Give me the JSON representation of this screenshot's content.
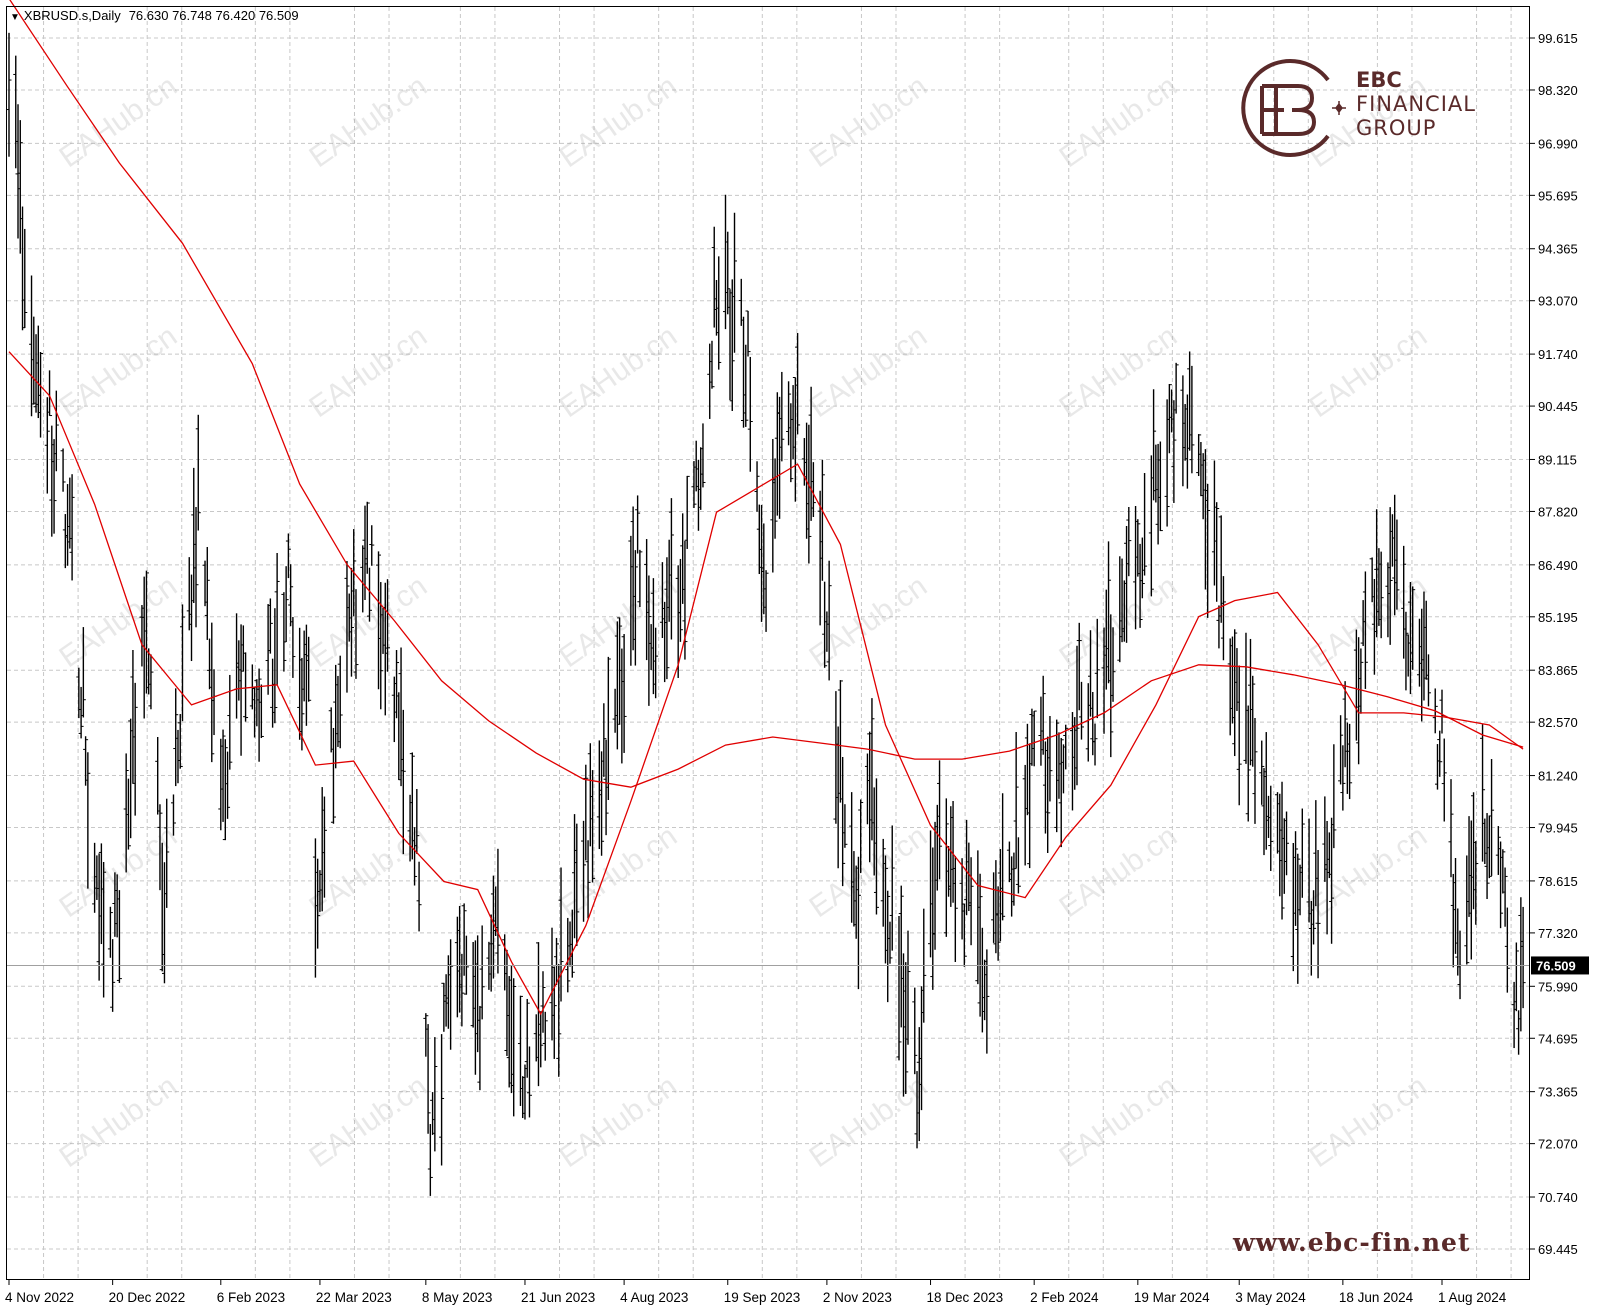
{
  "header": {
    "symbol": "XBRUSD.s,Daily",
    "ohlc": "76.630 76.748 76.420 76.509"
  },
  "brand": {
    "line1": "EBC",
    "line2": "FINANCIAL",
    "line3": "GROUP",
    "website": "www.ebc-fin.net"
  },
  "watermark_text": "EAHub.cn",
  "colors": {
    "bars": "#000000",
    "moving_averages": "#e00000",
    "grid": "#c8c8c8",
    "price_line": "#a0a0a0",
    "brand": "#5a2a2a"
  },
  "chart_data": {
    "type": "line",
    "symbol": "XBRUSD.s",
    "timeframe": "Daily",
    "ylim": [
      69.445,
      100.9
    ],
    "y_ticks": [
      "99.615",
      "98.320",
      "96.990",
      "95.695",
      "94.365",
      "93.070",
      "91.740",
      "90.445",
      "89.115",
      "87.820",
      "86.490",
      "85.195",
      "83.865",
      "82.570",
      "81.240",
      "79.945",
      "78.615",
      "77.320",
      "75.990",
      "74.695",
      "73.365",
      "72.070",
      "70.740",
      "69.445"
    ],
    "x_ticks": [
      "4 Nov 2022",
      "20 Dec 2022",
      "6 Feb 2023",
      "22 Mar 2023",
      "8 May 2023",
      "21 Jun 2023",
      "4 Aug 2023",
      "19 Sep 2023",
      "2 Nov 2023",
      "18 Dec 2023",
      "2 Feb 2024",
      "19 Mar 2024",
      "3 May 2024",
      "18 Jun 2024",
      "1 Aug 2024"
    ],
    "current_price": "76.509",
    "price_anchors": {
      "x": [
        "2022-11-04",
        "2022-11-07",
        "2022-11-10",
        "2022-11-22",
        "2022-12-01",
        "2022-12-07",
        "2022-12-12",
        "2022-12-21",
        "2022-12-28",
        "2023-01-04",
        "2023-01-12",
        "2023-01-27",
        "2023-02-06",
        "2023-02-13",
        "2023-02-23",
        "2023-03-07",
        "2023-03-17",
        "2023-03-20",
        "2023-04-03",
        "2023-04-12",
        "2023-04-20",
        "2023-05-04",
        "2023-05-10",
        "2023-05-22",
        "2023-05-31",
        "2023-06-07",
        "2023-06-12",
        "2023-06-23",
        "2023-07-04",
        "2023-07-13",
        "2023-07-20",
        "2023-08-03",
        "2023-08-10",
        "2023-08-17",
        "2023-08-31",
        "2023-09-08",
        "2023-09-14",
        "2023-09-27",
        "2023-10-06",
        "2023-10-13",
        "2023-10-19",
        "2023-10-30",
        "2023-11-06",
        "2023-11-16",
        "2023-11-22",
        "2023-12-05",
        "2023-12-12",
        "2023-12-22",
        "2024-01-02",
        "2024-01-12",
        "2024-01-23",
        "2024-02-05",
        "2024-02-13",
        "2024-02-22",
        "2024-03-01",
        "2024-03-11",
        "2024-03-19",
        "2024-03-27",
        "2024-04-05",
        "2024-04-12",
        "2024-04-22",
        "2024-05-02",
        "2024-05-07",
        "2024-05-20",
        "2024-06-04",
        "2024-06-12",
        "2024-06-20",
        "2024-06-28",
        "2024-07-08",
        "2024-07-17",
        "2024-07-25",
        "2024-08-02",
        "2024-08-09",
        "2024-08-13",
        "2024-08-20",
        "2024-08-26",
        "2024-09-03",
        "2024-09-06"
      ],
      "y": [
        98.0,
        98.5,
        94.5,
        90.0,
        87.0,
        83.0,
        78.0,
        77.0,
        81.0,
        85.5,
        78.0,
        88.0,
        80.0,
        84.5,
        82.5,
        86.0,
        83.0,
        78.5,
        84.5,
        87.0,
        84.5,
        79.0,
        72.0,
        77.0,
        75.0,
        77.0,
        76.5,
        73.5,
        75.5,
        78.0,
        80.0,
        83.0,
        86.5,
        84.0,
        86.5,
        90.0,
        93.5,
        92.0,
        86.0,
        89.5,
        90.5,
        87.5,
        82.0,
        78.5,
        80.5,
        76.0,
        74.0,
        79.5,
        78.0,
        76.5,
        79.5,
        82.0,
        81.5,
        83.0,
        83.0,
        85.5,
        86.5,
        89.0,
        90.5,
        89.5,
        86.5,
        83.0,
        82.5,
        79.5,
        78.0,
        79.0,
        82.0,
        85.0,
        86.5,
        85.0,
        84.0,
        81.5,
        76.5,
        78.0,
        80.0,
        79.0,
        75.5,
        76.5
      ]
    },
    "series": [
      {
        "x": [
          "2022-11-04",
          "2022-11-30",
          "2022-12-23",
          "2023-01-20",
          "2023-02-20",
          "2023-03-13",
          "2023-04-03",
          "2023-04-24",
          "2023-05-15",
          "2023-06-05",
          "2023-06-26",
          "2023-07-17",
          "2023-08-07",
          "2023-08-28",
          "2023-09-18",
          "2023-10-09",
          "2023-10-30",
          "2023-11-20",
          "2023-12-11",
          "2024-01-01",
          "2024-01-22",
          "2024-02-12",
          "2024-03-04",
          "2024-03-25",
          "2024-04-15",
          "2024-05-06",
          "2024-05-27",
          "2024-06-17",
          "2024-07-08",
          "2024-07-29",
          "2024-08-19",
          "2024-09-06"
        ],
        "y": [
          100.6,
          98.4,
          96.5,
          94.5,
          91.5,
          88.5,
          86.5,
          85.1,
          83.6,
          82.6,
          81.8,
          81.15,
          80.95,
          81.4,
          82.0,
          82.2,
          82.05,
          81.9,
          81.65,
          81.65,
          81.85,
          82.25,
          82.8,
          83.6,
          84.0,
          83.95,
          83.75,
          83.5,
          83.2,
          82.85,
          82.25,
          81.95
        ]
      },
      {
        "x": [
          "2022-11-04",
          "2022-11-22",
          "2022-12-12",
          "2023-01-02",
          "2023-01-24",
          "2023-02-13",
          "2023-03-03",
          "2023-03-20",
          "2023-04-06",
          "2023-04-26",
          "2023-05-16",
          "2023-05-31",
          "2023-06-15",
          "2023-06-28",
          "2023-07-18",
          "2023-08-07",
          "2023-08-28",
          "2023-09-14",
          "2023-09-29",
          "2023-10-20",
          "2023-11-08",
          "2023-11-28",
          "2023-12-18",
          "2024-01-08",
          "2024-01-29",
          "2024-02-16",
          "2024-03-07",
          "2024-03-27",
          "2024-04-15",
          "2024-05-01",
          "2024-05-20",
          "2024-06-07",
          "2024-06-25",
          "2024-07-15",
          "2024-08-02",
          "2024-08-22",
          "2024-09-06"
        ],
        "y": [
          91.8,
          90.7,
          88.0,
          84.5,
          83.0,
          83.4,
          83.5,
          81.5,
          81.6,
          79.8,
          78.6,
          78.4,
          76.6,
          75.3,
          77.5,
          80.6,
          84.0,
          87.8,
          88.3,
          89.0,
          87.0,
          82.5,
          80.0,
          78.5,
          78.2,
          79.7,
          81.0,
          83.0,
          85.2,
          85.6,
          85.8,
          84.5,
          82.8,
          82.8,
          82.7,
          82.5,
          81.9
        ]
      }
    ]
  }
}
